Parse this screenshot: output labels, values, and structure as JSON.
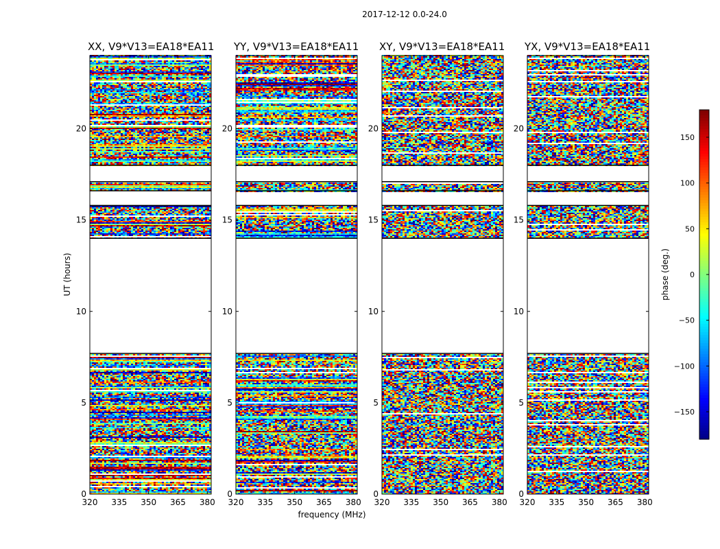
{
  "figure": {
    "suptitle": "2017-12-12 0.0-24.0",
    "xlabel": "frequency (MHz)",
    "ylabel": "UT (hours)",
    "colorbar_label": "phase (deg.)"
  },
  "chart_data": {
    "type": "heatmap",
    "panels": [
      {
        "title": "XX, V9*V13=EA18*EA11",
        "pol": "XX"
      },
      {
        "title": "YY, V9*V13=EA18*EA11",
        "pol": "YY"
      },
      {
        "title": "XY, V9*V13=EA18*EA11",
        "pol": "XY"
      },
      {
        "title": "YX, V9*V13=EA18*EA11",
        "pol": "YX"
      }
    ],
    "x": {
      "label": "frequency (MHz)",
      "lim": [
        320,
        382
      ],
      "ticks": [
        320,
        335,
        350,
        365,
        380
      ]
    },
    "y": {
      "label": "UT (hours)",
      "lim": [
        0,
        24
      ],
      "ticks": [
        0,
        5,
        10,
        15,
        20
      ]
    },
    "colorbar": {
      "label": "phase (deg.)",
      "lim": [
        -180,
        180
      ],
      "ticks": [
        150,
        100,
        50,
        0,
        -50,
        -100,
        -150
      ],
      "colormap": "jet"
    },
    "data_gaps_hours": [
      [
        7.7,
        14.0
      ],
      [
        15.8,
        16.6
      ],
      [
        17.1,
        18.0
      ]
    ]
  },
  "colors": {
    "axes": "#000000",
    "background": "#ffffff",
    "gap_lines": "#000000"
  }
}
